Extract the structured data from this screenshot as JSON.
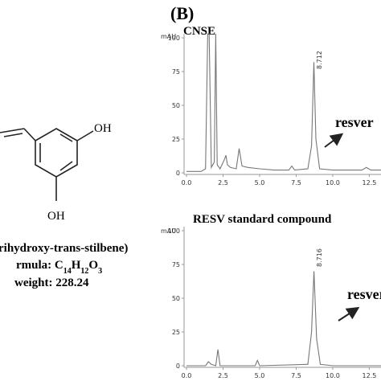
{
  "panel_label": "(B)",
  "structure": {
    "oh_top": "OH",
    "oh_bottom": "OH",
    "name": "rihydroxy-trans-stilbene)",
    "formula": [
      "rmula: C",
      "14",
      "H",
      "12",
      "O",
      "3"
    ],
    "weight": "weight: 228.24"
  },
  "chart_data": [
    {
      "type": "line",
      "title": "CNSE",
      "y_label": "mAU",
      "peak_label": "8.712",
      "annotation": "resver",
      "color": "#777",
      "x": [
        0,
        1.0,
        1.3,
        1.45,
        1.55,
        1.7,
        1.9,
        2.0,
        2.1,
        2.3,
        2.6,
        2.7,
        2.8,
        3.0,
        3.4,
        3.6,
        3.8,
        4.2,
        5.0,
        6.0,
        7.0,
        7.2,
        7.4,
        8.3,
        8.55,
        8.712,
        8.85,
        9.1,
        10,
        11,
        12,
        12.3,
        12.6,
        13.3
      ],
      "values": [
        1,
        1,
        3,
        103,
        103,
        4,
        8,
        103,
        6,
        3,
        10,
        13,
        6,
        4,
        3,
        18,
        5,
        4,
        3,
        2,
        2,
        5,
        2,
        3,
        20,
        82,
        25,
        3,
        2,
        2,
        2,
        4,
        2,
        2
      ],
      "xlim": [
        0,
        13.3
      ],
      "ylim": [
        0,
        103
      ],
      "xticks": [
        {
          "value": 0,
          "label": "0.0"
        },
        {
          "value": 2.5,
          "label": "2.5"
        },
        {
          "value": 5,
          "label": "5.0"
        },
        {
          "value": 7.5,
          "label": "7.5"
        },
        {
          "value": 10,
          "label": "10.0"
        },
        {
          "value": 12.5,
          "label": "12.5"
        }
      ],
      "yticks": [
        0,
        25,
        50,
        75,
        100
      ]
    },
    {
      "type": "line",
      "title": "RESV standard compound",
      "y_label": "mAU",
      "peak_label": "8.716",
      "annotation": "resver",
      "color": "#777",
      "x": [
        0,
        1.3,
        1.5,
        1.7,
        2.0,
        2.15,
        2.3,
        4.7,
        4.85,
        5.0,
        8.3,
        8.55,
        8.716,
        8.9,
        9.15,
        10,
        13.3
      ],
      "values": [
        0,
        0,
        3,
        1,
        0,
        12,
        0,
        0,
        4,
        0,
        1,
        25,
        70,
        20,
        1,
        0,
        0
      ],
      "xlim": [
        0,
        13.3
      ],
      "ylim": [
        0,
        103
      ],
      "xticks": [
        {
          "value": 0,
          "label": "0.0"
        },
        {
          "value": 2.5,
          "label": "2.5"
        },
        {
          "value": 5,
          "label": "5.0"
        },
        {
          "value": 7.5,
          "label": "7.5"
        },
        {
          "value": 10,
          "label": "10.0"
        },
        {
          "value": 12.5,
          "label": "12.5"
        }
      ],
      "yticks": [
        0,
        25,
        50,
        75,
        100
      ]
    }
  ]
}
